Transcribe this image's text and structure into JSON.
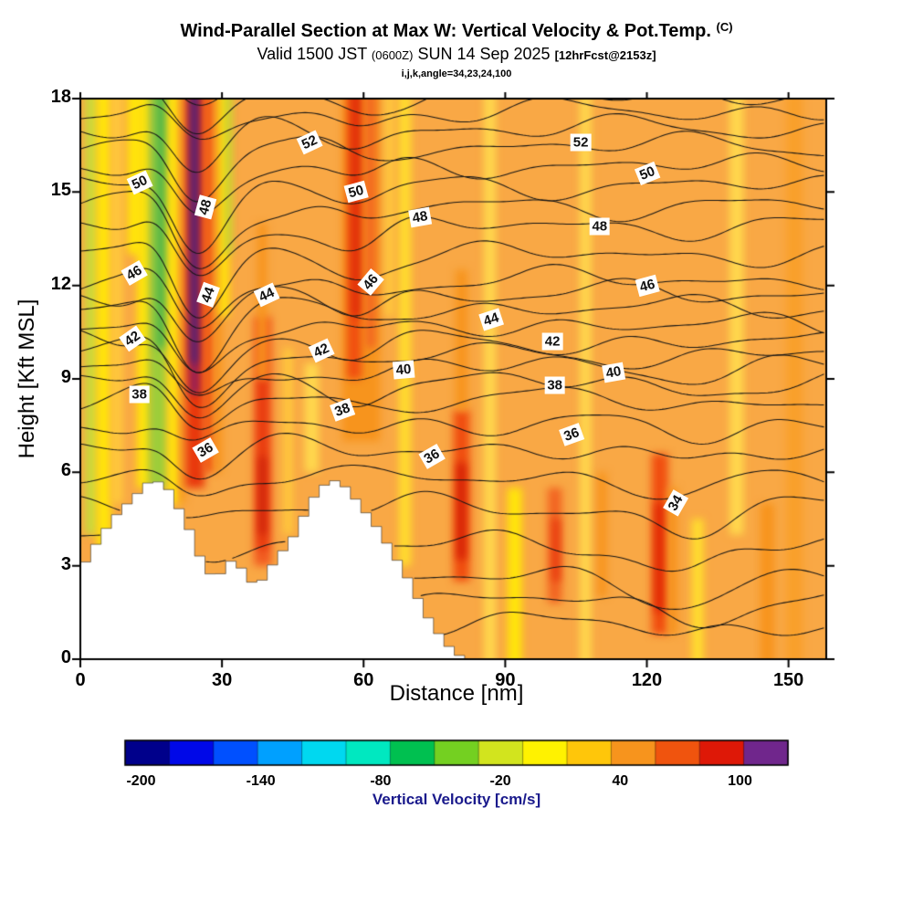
{
  "header": {
    "title": "Wind-Parallel Section at Max W: Vertical Velocity & Pot.Temp.",
    "title_unit": "(C)",
    "valid_line": {
      "prefix": "Valid 1500 JST",
      "zulu": "(0600Z)",
      "date": "SUN 14 Sep 2025",
      "fcst": "[12hrFcst@2153z]"
    },
    "params_line": "i,j,k,angle=34,23,24,100"
  },
  "chart_data": {
    "type": "heatmap",
    "title": "Wind-Parallel Section at Max W: Vertical Velocity & Pot.Temp. (C)",
    "xlabel": "Distance [nm]",
    "ylabel": "Height [Kft MSL]",
    "xlim": [
      0,
      158
    ],
    "ylim": [
      0,
      18
    ],
    "xticks": [
      0,
      30,
      60,
      90,
      120,
      150
    ],
    "yticks": [
      0,
      3,
      6,
      9,
      12,
      15,
      18
    ],
    "fill_variable": "vertical velocity (cm/s), filled colors",
    "contour_variable": "potential temperature (C), black line contours",
    "contour_interval": 1,
    "background_color": "#F9A845",
    "fill_bands": [
      {
        "x0": 1,
        "x1": 3.5,
        "y0": 4,
        "y1": 18,
        "c": "#C8DC3C"
      },
      {
        "x0": 3.5,
        "x1": 6.5,
        "y0": 3,
        "y1": 18,
        "c": "#FFE60A"
      },
      {
        "x0": 6.5,
        "x1": 9,
        "y0": 5,
        "y1": 18,
        "c": "#FFC93C"
      },
      {
        "x0": 10,
        "x1": 13,
        "y0": 13,
        "y1": 18,
        "c": "#FFE60A"
      },
      {
        "x0": 12,
        "x1": 15,
        "y0": 5.5,
        "y1": 18,
        "c": "#FFE60A"
      },
      {
        "x0": 14.5,
        "x1": 18.5,
        "y0": 5.5,
        "y1": 18,
        "c": "#9DCE3A"
      },
      {
        "x0": 16,
        "x1": 18.5,
        "y0": 10,
        "y1": 18,
        "c": "#55B64A"
      },
      {
        "x0": 18.5,
        "x1": 21,
        "y0": 5,
        "y1": 18,
        "c": "#FFE60A"
      },
      {
        "x0": 21,
        "x1": 22.3,
        "y0": 5,
        "y1": 18,
        "c": "#F7941D"
      },
      {
        "x0": 22.3,
        "x1": 26.3,
        "y0": 5.5,
        "y1": 18,
        "c": "#E8380D"
      },
      {
        "x0": 23.2,
        "x1": 25.2,
        "y0": 8.5,
        "y1": 18,
        "c": "#8E1E5F"
      },
      {
        "x0": 23.5,
        "x1": 24.8,
        "y0": 9.5,
        "y1": 18,
        "c": "#46237A"
      },
      {
        "x0": 26.3,
        "x1": 28.3,
        "y0": 6,
        "y1": 18,
        "c": "#F04E10"
      },
      {
        "x0": 28.3,
        "x1": 30,
        "y0": 6,
        "y1": 18,
        "c": "#F7941D"
      },
      {
        "x0": 29.5,
        "x1": 31.5,
        "y0": 11,
        "y1": 18,
        "c": "#FFE60A"
      },
      {
        "x0": 30.8,
        "x1": 32,
        "y0": 13,
        "y1": 18,
        "c": "#B5D43C"
      },
      {
        "x0": 36.8,
        "x1": 40.5,
        "y0": 3,
        "y1": 11,
        "c": "#F25C22"
      },
      {
        "x0": 37.6,
        "x1": 39.6,
        "y0": 3.5,
        "y1": 9,
        "c": "#E8380D"
      },
      {
        "x0": 38,
        "x1": 39.2,
        "y0": 4,
        "y1": 6.5,
        "c": "#C81E0A"
      },
      {
        "x0": 37.5,
        "x1": 39.5,
        "y0": 9,
        "y1": 14,
        "c": "#F7941D"
      },
      {
        "x0": 43,
        "x1": 45,
        "y0": 4,
        "y1": 10,
        "c": "#FFC93C"
      },
      {
        "x0": 47.5,
        "x1": 50.5,
        "y0": 6,
        "y1": 9.5,
        "c": "#FFD84D"
      },
      {
        "x0": 55.5,
        "x1": 63.5,
        "y0": 7,
        "y1": 18,
        "c": "#F7941D"
      },
      {
        "x0": 56.5,
        "x1": 59.5,
        "y0": 9,
        "y1": 18,
        "c": "#F04E10"
      },
      {
        "x0": 57.5,
        "x1": 59.2,
        "y0": 11,
        "y1": 18,
        "c": "#DE2B09"
      },
      {
        "x0": 60.5,
        "x1": 62.5,
        "y0": 10,
        "y1": 18,
        "c": "#F26522"
      },
      {
        "x0": 64.5,
        "x1": 66.5,
        "y0": 11,
        "y1": 18,
        "c": "#FFC93C"
      },
      {
        "x0": 67.5,
        "x1": 70,
        "y0": 3,
        "y1": 18,
        "c": "#FFDE2E"
      },
      {
        "x0": 79,
        "x1": 82.5,
        "y0": 2.5,
        "y1": 8,
        "c": "#F04E10"
      },
      {
        "x0": 79.8,
        "x1": 81.6,
        "y0": 3.2,
        "y1": 6.3,
        "c": "#D41F06"
      },
      {
        "x0": 79.5,
        "x1": 82,
        "y0": 8,
        "y1": 12.5,
        "c": "#F7941D"
      },
      {
        "x0": 85.5,
        "x1": 88,
        "y0": 0,
        "y1": 18,
        "c": "#FFD84D"
      },
      {
        "x0": 90.5,
        "x1": 93.5,
        "y0": 0,
        "y1": 5.5,
        "c": "#FFE60A"
      },
      {
        "x0": 99,
        "x1": 102,
        "y0": 1.8,
        "y1": 5.5,
        "c": "#F26522"
      },
      {
        "x0": 100,
        "x1": 101.5,
        "y0": 2.5,
        "y1": 4.5,
        "c": "#E8380D"
      },
      {
        "x0": 105.8,
        "x1": 108.2,
        "y0": 0,
        "y1": 18,
        "c": "#FFD84D"
      },
      {
        "x0": 109.5,
        "x1": 111.5,
        "y0": 2,
        "y1": 6,
        "c": "#F7941D"
      },
      {
        "x0": 121,
        "x1": 124.5,
        "y0": 0.8,
        "y1": 6.6,
        "c": "#F04E10"
      },
      {
        "x0": 121.8,
        "x1": 123.6,
        "y0": 1.5,
        "y1": 5,
        "c": "#E02806"
      },
      {
        "x0": 124.5,
        "x1": 126.5,
        "y0": 0.8,
        "y1": 5.5,
        "c": "#F7941D"
      },
      {
        "x0": 129.5,
        "x1": 132,
        "y0": 0,
        "y1": 4.5,
        "c": "#FFDE2E"
      },
      {
        "x0": 137.5,
        "x1": 140.5,
        "y0": 4,
        "y1": 18,
        "c": "#FFD84D"
      },
      {
        "x0": 144,
        "x1": 147,
        "y0": 0,
        "y1": 5,
        "c": "#F7941D"
      },
      {
        "x0": 149.5,
        "x1": 153,
        "y0": 0,
        "y1": 18,
        "c": "#F9A02B"
      }
    ],
    "terrain_profile": [
      [
        0,
        2.9
      ],
      [
        2,
        3.3
      ],
      [
        4,
        3.9
      ],
      [
        6,
        4.3
      ],
      [
        8,
        4.7
      ],
      [
        10,
        5.0
      ],
      [
        12,
        5.3
      ],
      [
        14,
        5.65
      ],
      [
        17,
        5.7
      ],
      [
        19,
        5.4
      ],
      [
        21,
        4.8
      ],
      [
        23,
        4.2
      ],
      [
        25,
        3.4
      ],
      [
        27,
        2.8
      ],
      [
        29,
        2.55
      ],
      [
        31,
        3.1
      ],
      [
        33,
        3.2
      ],
      [
        35,
        2.7
      ],
      [
        37,
        2.35
      ],
      [
        39,
        2.6
      ],
      [
        41,
        3.1
      ],
      [
        43,
        3.5
      ],
      [
        45,
        3.9
      ],
      [
        47,
        4.5
      ],
      [
        49,
        5.1
      ],
      [
        51,
        5.5
      ],
      [
        53,
        5.75
      ],
      [
        55,
        5.7
      ],
      [
        57,
        5.4
      ],
      [
        59,
        5.0
      ],
      [
        61,
        4.6
      ],
      [
        63,
        4.2
      ],
      [
        65,
        3.7
      ],
      [
        67,
        3.2
      ],
      [
        69,
        2.7
      ],
      [
        71,
        2.1
      ],
      [
        73,
        1.5
      ],
      [
        75,
        1.0
      ],
      [
        77,
        0.6
      ],
      [
        79,
        0.25
      ],
      [
        81,
        0.05
      ],
      [
        82,
        0
      ]
    ],
    "terrain_block_width_nm": 2.2,
    "isentrope_levels": [
      30,
      56
    ],
    "isentrope_base_heights": {
      "30": 1.2,
      "31": 1.9,
      "32": 2.6,
      "33": 3.7,
      "34": 4.9,
      "35": 5.9,
      "36": 6.8,
      "37": 7.6,
      "38": 8.4,
      "39": 8.9,
      "40": 9.4,
      "41": 9.8,
      "42": 10.2,
      "43": 10.75,
      "44": 11.3,
      "45": 11.75,
      "46": 12.2,
      "47": 13.0,
      "48": 13.9,
      "49": 14.55,
      "50": 15.2,
      "51": 15.85,
      "52": 16.5,
      "53": 17.05,
      "54": 17.6,
      "55": 18.15,
      "56": 18.7
    },
    "wave": {
      "primary": {
        "x": 24.5,
        "amp": 2.0,
        "sigma": 6.0,
        "h": 13.5,
        "hsigma": 4.7
      },
      "upstream": {
        "x": 16.5,
        "amp": 0.7,
        "sigma": 4.0,
        "h": 13.0,
        "hsigma": 5.0
      },
      "secondary": {
        "x": 59.0,
        "amp": 0.55,
        "sigma": 5.5,
        "h": 14.0,
        "hsigma": 5.3
      },
      "low": {
        "x": 128.0,
        "amp": 0.9,
        "sigma": 8.0,
        "h": 4.5,
        "hsigma": 2.8
      }
    },
    "contour_labels": [
      {
        "v": 50,
        "x": 12.5,
        "y": 15.3,
        "rot": -25
      },
      {
        "v": 48,
        "x": 26.5,
        "y": 14.5,
        "rot": -75
      },
      {
        "v": 52,
        "x": 48.5,
        "y": 16.6,
        "rot": -25
      },
      {
        "v": 50,
        "x": 58.5,
        "y": 15.0,
        "rot": -15
      },
      {
        "v": 48,
        "x": 72,
        "y": 14.2,
        "rot": -10
      },
      {
        "v": 52,
        "x": 106,
        "y": 16.6,
        "rot": 0
      },
      {
        "v": 50,
        "x": 120,
        "y": 15.6,
        "rot": -22
      },
      {
        "v": 48,
        "x": 110,
        "y": 13.9,
        "rot": 0
      },
      {
        "v": 46,
        "x": 11.5,
        "y": 12.4,
        "rot": -30
      },
      {
        "v": 44,
        "x": 27,
        "y": 11.7,
        "rot": -70
      },
      {
        "v": 44,
        "x": 39.5,
        "y": 11.7,
        "rot": -25
      },
      {
        "v": 46,
        "x": 61.5,
        "y": 12.1,
        "rot": -50
      },
      {
        "v": 44,
        "x": 87,
        "y": 10.9,
        "rot": -18
      },
      {
        "v": 42,
        "x": 100,
        "y": 10.2,
        "rot": 0
      },
      {
        "v": 46,
        "x": 120,
        "y": 12.0,
        "rot": -15
      },
      {
        "v": 42,
        "x": 11,
        "y": 10.3,
        "rot": -35
      },
      {
        "v": 38,
        "x": 12.5,
        "y": 8.5,
        "rot": 0
      },
      {
        "v": 42,
        "x": 51,
        "y": 9.9,
        "rot": -25
      },
      {
        "v": 40,
        "x": 68.5,
        "y": 9.3,
        "rot": -5
      },
      {
        "v": 38,
        "x": 100.5,
        "y": 8.8,
        "rot": 0
      },
      {
        "v": 40,
        "x": 113,
        "y": 9.2,
        "rot": -10
      },
      {
        "v": 36,
        "x": 26.5,
        "y": 6.7,
        "rot": -30
      },
      {
        "v": 38,
        "x": 55.5,
        "y": 8.0,
        "rot": -20
      },
      {
        "v": 36,
        "x": 74.5,
        "y": 6.5,
        "rot": -30
      },
      {
        "v": 36,
        "x": 104,
        "y": 7.2,
        "rot": -20
      },
      {
        "v": 34,
        "x": 126,
        "y": 5.0,
        "rot": -60
      }
    ],
    "colorbar": {
      "title": "Vertical Velocity [cm/s]",
      "title_color": "#1a1a8c",
      "ticks": [
        -200,
        -140,
        -80,
        -20,
        40,
        100
      ],
      "value_range": [
        -208,
        124
      ],
      "segment_colors": [
        "#00008B",
        "#0008E8",
        "#0050FF",
        "#00A0FF",
        "#00D8F0",
        "#00E8C0",
        "#00C050",
        "#74D021",
        "#D2E41E",
        "#FFF200",
        "#FFC60A",
        "#F7941D",
        "#F0540E",
        "#DE1807",
        "#70268C"
      ]
    }
  }
}
